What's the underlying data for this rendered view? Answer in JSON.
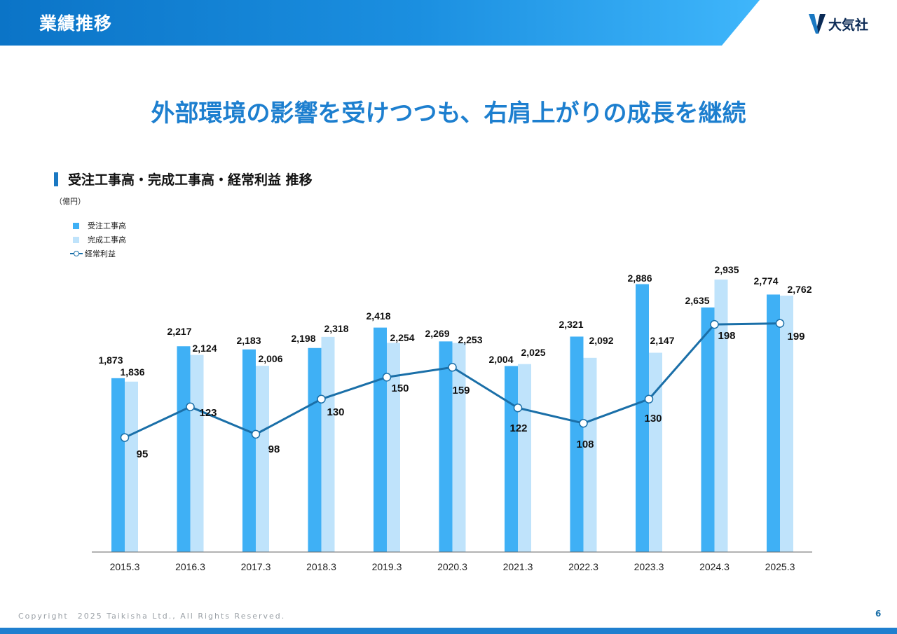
{
  "header": {
    "title": "業績推移",
    "company": "大気社"
  },
  "headline": "外部環境の影響を受けつつも、右肩上がりの成長を継続",
  "section_title": "受注工事高・完成工事高・経常利益 推移",
  "unit": "（億円）",
  "colors": {
    "orders": "#3fb0f5",
    "completed": "#bfe3fb",
    "profit": "#1a6fa8",
    "brand": "#1d7fcf"
  },
  "chart_data": {
    "type": "bar",
    "categories": [
      "2015.3",
      "2016.3",
      "2017.3",
      "2018.3",
      "2019.3",
      "2020.3",
      "2021.3",
      "2022.3",
      "2023.3",
      "2024.3",
      "2025.3"
    ],
    "series": [
      {
        "name": "受注工事高",
        "type": "bar",
        "values": [
          1873,
          2217,
          2183,
          2198,
          2418,
          2269,
          2004,
          2321,
          2886,
          2635,
          2774
        ],
        "labels": [
          "1,873",
          "2,217",
          "2,183",
          "2,198",
          "2,418",
          "2,269",
          "2,004",
          "2,321",
          "2,886",
          "2,635",
          "2,774"
        ]
      },
      {
        "name": "完成工事高",
        "type": "bar",
        "values": [
          1836,
          2124,
          2006,
          2318,
          2254,
          2253,
          2025,
          2092,
          2147,
          2935,
          2762
        ],
        "labels": [
          "1,836",
          "2,124",
          "2,006",
          "2,318",
          "2,254",
          "2,253",
          "2,025",
          "2,092",
          "2,147",
          "2,935",
          "2,762"
        ]
      },
      {
        "name": "経常利益",
        "type": "line",
        "values": [
          95,
          123,
          98,
          130,
          150,
          159,
          122,
          108,
          130,
          198,
          199
        ],
        "labels": [
          "95",
          "123",
          "98",
          "130",
          "150",
          "159",
          "122",
          "108",
          "130",
          "198",
          "199"
        ]
      }
    ],
    "legend_position": "top-left",
    "grid": false
  },
  "footer": {
    "copyright": "Copyright　2025 Taikisha Ltd., All Rights Reserved.",
    "page": "6"
  }
}
